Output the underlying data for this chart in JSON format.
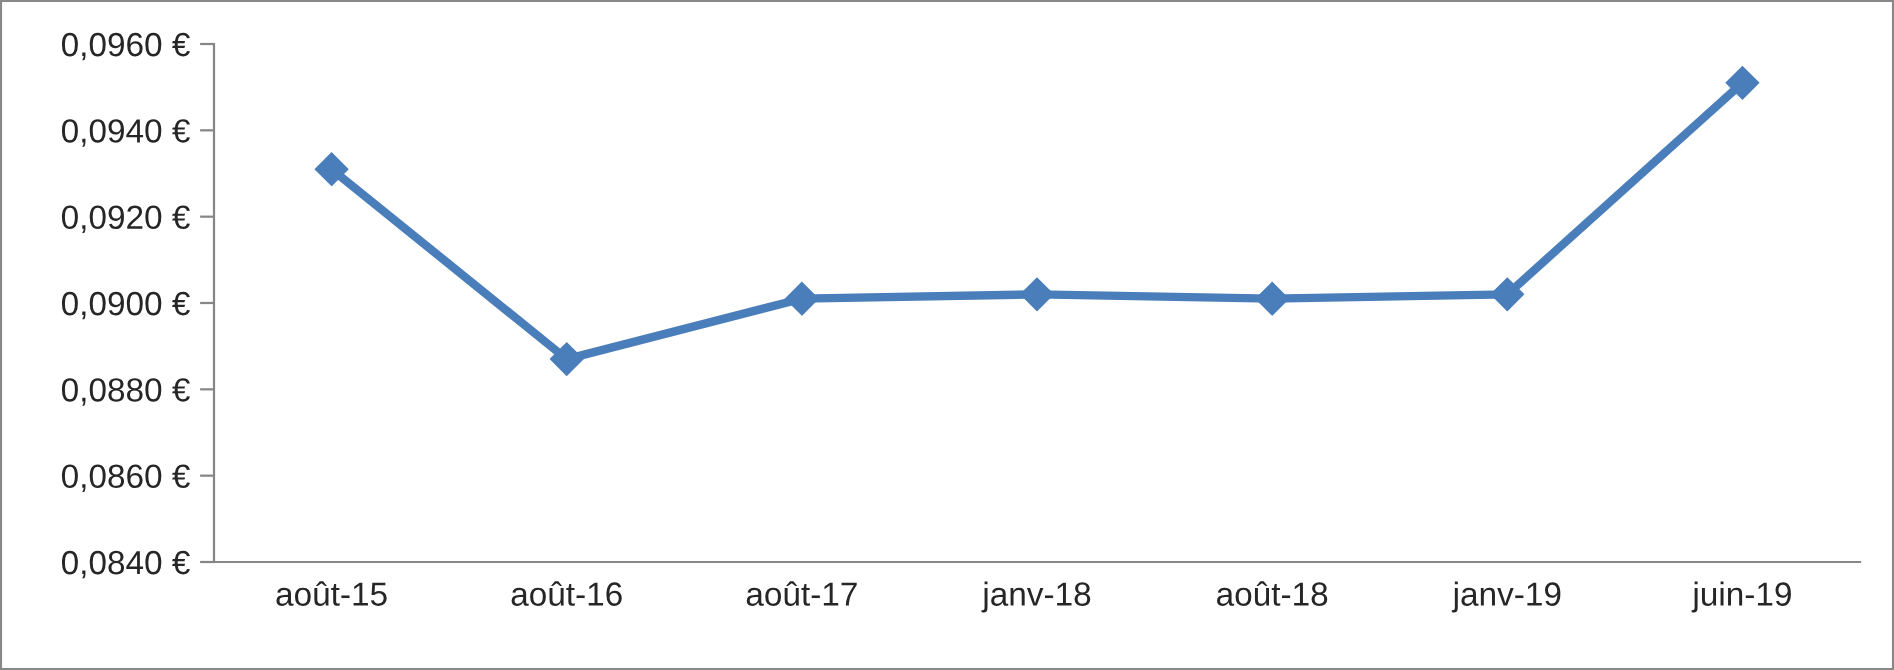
{
  "chart_data": {
    "type": "line",
    "categories": [
      "août-15",
      "août-16",
      "août-17",
      "janv-18",
      "août-18",
      "janv-19",
      "juin-19"
    ],
    "series": [
      {
        "color": "#4a7ebb",
        "values": [
          0.0931,
          0.0887,
          0.0901,
          0.0902,
          0.0901,
          0.0902,
          0.0951
        ]
      }
    ],
    "ylim": [
      0.084,
      0.096
    ],
    "yticks": [
      {
        "value": 0.084,
        "label": "0,0840 €"
      },
      {
        "value": 0.086,
        "label": "0,0860 €"
      },
      {
        "value": 0.088,
        "label": "0,0880 €"
      },
      {
        "value": 0.09,
        "label": "0,0900 €"
      },
      {
        "value": 0.092,
        "label": "0,0920 €"
      },
      {
        "value": 0.094,
        "label": "0,0940 €"
      },
      {
        "value": 0.096,
        "label": "0,0960 €"
      }
    ],
    "grid": false,
    "legend": false,
    "marker": "diamond",
    "line_style": "solid"
  }
}
